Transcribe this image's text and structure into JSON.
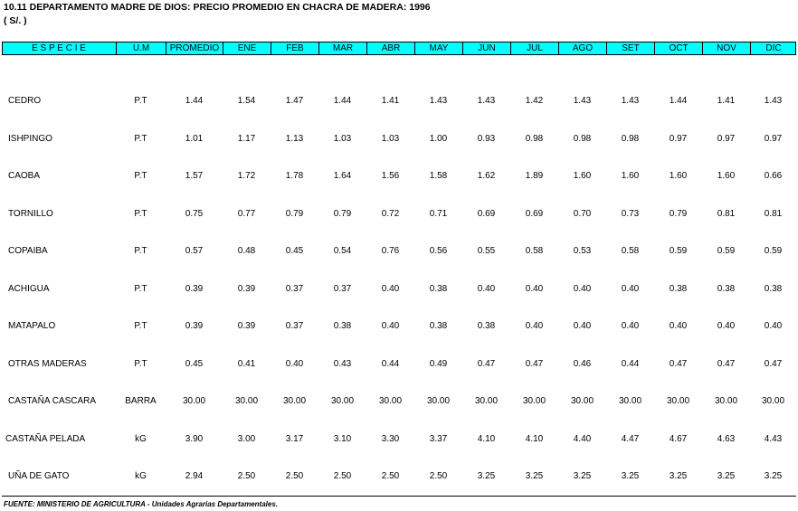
{
  "header": {
    "title": "10.11   DEPARTAMENTO MADRE DE DIOS:  PRECIO PROMEDIO EN CHACRA DE MADERA: 1996",
    "unit": "( S/. )"
  },
  "table": {
    "columns": [
      "E  S  P  E  C  I  E",
      "U.M",
      "PROMEDIO",
      "ENE",
      "FEB",
      "MAR",
      "ABR",
      "MAY",
      "JUN",
      "JUL",
      "AGO",
      "SET",
      "OCT",
      "NOV",
      "DIC"
    ],
    "rows": [
      [
        "CEDRO",
        "P.T",
        "1.44",
        "1.54",
        "1.47",
        "1.44",
        "1.41",
        "1.43",
        "1.43",
        "1.42",
        "1.43",
        "1.43",
        "1.44",
        "1.41",
        "1.43"
      ],
      [
        "ISHPINGO",
        "P.T",
        "1.01",
        "1.17",
        "1.13",
        "1.03",
        "1.03",
        "1.00",
        "0.93",
        "0.98",
        "0.98",
        "0.98",
        "0.97",
        "0.97",
        "0.97"
      ],
      [
        "CAOBA",
        "P.T",
        "1.57",
        "1.72",
        "1.78",
        "1.64",
        "1.56",
        "1.58",
        "1.62",
        "1.89",
        "1.60",
        "1.60",
        "1.60",
        "1.60",
        "0.66"
      ],
      [
        "TORNILLO",
        "P.T",
        "0.75",
        "0.77",
        "0.79",
        "0.79",
        "0.72",
        "0.71",
        "0.69",
        "0.69",
        "0.70",
        "0.73",
        "0.79",
        "0.81",
        "0.81"
      ],
      [
        "COPAIBA",
        "P.T",
        "0.57",
        "0.48",
        "0.45",
        "0.54",
        "0.76",
        "0.56",
        "0.55",
        "0.58",
        "0.53",
        "0.58",
        "0.59",
        "0.59",
        "0.59"
      ],
      [
        "ACHIGUA",
        "P.T",
        "0.39",
        "0.39",
        "0.37",
        "0.37",
        "0.40",
        "0.38",
        "0.40",
        "0.40",
        "0.40",
        "0.40",
        "0.38",
        "0.38",
        "0.38"
      ],
      [
        "MATAPALO",
        "P.T",
        "0.39",
        "0.39",
        "0.37",
        "0.38",
        "0.40",
        "0.38",
        "0.38",
        "0.40",
        "0.40",
        "0.40",
        "0.40",
        "0.40",
        "0.40"
      ],
      [
        "OTRAS MADERAS",
        "P.T",
        "0.45",
        "0.41",
        "0.40",
        "0.43",
        "0.44",
        "0.49",
        "0.47",
        "0.47",
        "0.46",
        "0.44",
        "0.47",
        "0.47",
        "0.47"
      ],
      [
        "CASTAÑA CASCARA",
        "BARRA",
        "30.00",
        "30.00",
        "30.00",
        "30.00",
        "30.00",
        "30.00",
        "30.00",
        "30.00",
        "30.00",
        "30.00",
        "30.00",
        "30.00",
        "30.00"
      ],
      [
        "CASTAÑA PELADA",
        "kG",
        "3.90",
        "3.00",
        "3.17",
        "3.10",
        "3.30",
        "3.37",
        "4.10",
        "4.10",
        "4.40",
        "4.47",
        "4.67",
        "4.63",
        "4.43"
      ],
      [
        "UÑA DE GATO",
        "kG",
        "2.94",
        "2.50",
        "2.50",
        "2.50",
        "2.50",
        "2.50",
        "3.25",
        "3.25",
        "3.25",
        "3.25",
        "3.25",
        "3.25",
        "3.25"
      ]
    ]
  },
  "footer": {
    "source": "FUENTE: MINISTERIO DE AGRICULTURA - Unidades Agrarias Departamentales."
  }
}
